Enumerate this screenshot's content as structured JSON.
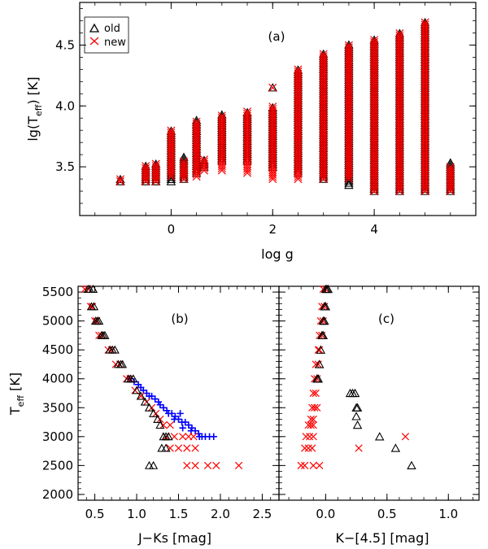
{
  "chart_data": [
    {
      "id": "a",
      "type": "scatter",
      "panel_label": "(a)",
      "xlabel": "log g",
      "ylabel_main": "lg(T",
      "ylabel_sub": "eff",
      "ylabel_tail": ") [K]",
      "xlim": [
        -1.8,
        6.0
      ],
      "ylim": [
        3.1,
        4.85
      ],
      "xticks": [
        0,
        2,
        4
      ],
      "xtick_labels": [
        "0",
        "2",
        "4"
      ],
      "yticks": [
        3.5,
        4.0,
        4.5
      ],
      "ytick_labels": [
        "3.5",
        "4.0",
        "4.5"
      ],
      "legend": {
        "position": "top-left",
        "entries": [
          {
            "marker": "triangle",
            "label": "old",
            "color": "#000000"
          },
          {
            "marker": "x",
            "label": "new",
            "color": "#ff0000"
          }
        ]
      },
      "columns": [
        {
          "logg": -1.0,
          "old": [
            3.38,
            3.4
          ],
          "new": [
            3.38,
            3.4
          ]
        },
        {
          "logg": -0.5,
          "old": [
            3.38,
            3.52
          ],
          "new": [
            3.38,
            3.52
          ]
        },
        {
          "logg": -0.3,
          "old": [
            3.38,
            3.54
          ],
          "new": [
            3.38,
            3.54
          ]
        },
        {
          "logg": 0.0,
          "old": [
            3.38,
            3.8
          ],
          "new": [
            3.42,
            3.8
          ]
        },
        {
          "logg": 0.25,
          "old": [
            3.4,
            3.58
          ],
          "new": [
            3.4,
            3.56
          ]
        },
        {
          "logg": 0.5,
          "old": [
            3.45,
            3.89
          ],
          "new": [
            3.42,
            3.87
          ]
        },
        {
          "logg": 0.65,
          "old": [
            3.5,
            3.57
          ],
          "new": [
            3.47,
            3.57
          ]
        },
        {
          "logg": 1.0,
          "old": [
            3.55,
            3.93
          ],
          "new": [
            3.47,
            3.93
          ]
        },
        {
          "logg": 1.5,
          "old": [
            3.55,
            3.96
          ],
          "new": [
            3.45,
            3.96
          ]
        },
        {
          "logg": 2.0,
          "old": [
            3.5,
            4.0
          ],
          "new": [
            3.4,
            4.0
          ]
        },
        {
          "logg": 2.5,
          "old": [
            3.45,
            4.3
          ],
          "new": [
            3.4,
            4.3
          ]
        },
        {
          "logg": 3.0,
          "old": [
            3.4,
            4.43
          ],
          "new": [
            3.4,
            4.43
          ]
        },
        {
          "logg": 3.5,
          "old": [
            3.35,
            4.51
          ],
          "new": [
            3.4,
            4.51
          ]
        },
        {
          "logg": 4.0,
          "old": [
            3.3,
            4.55
          ],
          "new": [
            3.3,
            4.55
          ]
        },
        {
          "logg": 4.5,
          "old": [
            3.3,
            4.61
          ],
          "new": [
            3.3,
            4.61
          ]
        },
        {
          "logg": 5.0,
          "old": [
            3.3,
            4.7
          ],
          "new": [
            3.3,
            4.7
          ]
        },
        {
          "logg": 5.5,
          "old": [
            3.3,
            3.54
          ],
          "new": [
            3.3,
            3.5
          ]
        }
      ],
      "extra_old": [
        [
          2.0,
          4.15
        ]
      ],
      "extra_new": [
        [
          2.0,
          4.15
        ]
      ]
    },
    {
      "id": "b",
      "type": "scatter",
      "panel_label": "(b)",
      "xlabel": "J−Ks [mag]",
      "ylabel_main": "T",
      "ylabel_sub": "eff",
      "ylabel_tail": " [K]",
      "xlim": [
        0.3,
        2.7
      ],
      "ylim": [
        1900,
        5600
      ],
      "xticks": [
        0.5,
        1.0,
        1.5,
        2.0,
        2.5
      ],
      "xtick_labels": [
        "0.5",
        "1.0",
        "1.5",
        "2.0",
        "2.5"
      ],
      "yticks": [
        2000,
        2500,
        3000,
        3500,
        4000,
        4500,
        5000,
        5500
      ],
      "ytick_labels": [
        "2000",
        "2500",
        "3000",
        "3500",
        "4000",
        "4500",
        "5000",
        "5500"
      ],
      "old_points": [
        [
          0.44,
          5550
        ],
        [
          0.48,
          5550
        ],
        [
          0.42,
          5550
        ],
        [
          0.46,
          5250
        ],
        [
          0.49,
          5250
        ],
        [
          0.51,
          5000
        ],
        [
          0.53,
          5000
        ],
        [
          0.55,
          5000
        ],
        [
          0.58,
          4750
        ],
        [
          0.6,
          4750
        ],
        [
          0.62,
          4750
        ],
        [
          0.68,
          4500
        ],
        [
          0.71,
          4500
        ],
        [
          0.74,
          4500
        ],
        [
          0.78,
          4250
        ],
        [
          0.81,
          4250
        ],
        [
          0.83,
          4250
        ],
        [
          0.9,
          4000
        ],
        [
          0.93,
          4000
        ],
        [
          0.96,
          4000
        ],
        [
          1.0,
          3800
        ],
        [
          1.05,
          3700
        ],
        [
          1.1,
          3600
        ],
        [
          1.15,
          3500
        ],
        [
          1.2,
          3400
        ],
        [
          1.25,
          3300
        ],
        [
          1.28,
          3200
        ],
        [
          1.32,
          3000
        ],
        [
          1.35,
          3000
        ],
        [
          1.38,
          3000
        ],
        [
          1.3,
          2800
        ],
        [
          1.35,
          2800
        ],
        [
          1.15,
          2500
        ],
        [
          1.2,
          2500
        ]
      ],
      "new_points": [
        [
          0.38,
          5550
        ],
        [
          0.42,
          5550
        ],
        [
          0.45,
          5250
        ],
        [
          0.47,
          5250
        ],
        [
          0.5,
          5000
        ],
        [
          0.52,
          5000
        ],
        [
          0.55,
          4750
        ],
        [
          0.58,
          4750
        ],
        [
          0.66,
          4500
        ],
        [
          0.7,
          4500
        ],
        [
          0.75,
          4250
        ],
        [
          0.8,
          4250
        ],
        [
          0.88,
          4000
        ],
        [
          0.92,
          4000
        ],
        [
          0.98,
          3800
        ],
        [
          1.05,
          3700
        ],
        [
          1.12,
          3600
        ],
        [
          1.18,
          3500
        ],
        [
          1.23,
          3400
        ],
        [
          1.28,
          3300
        ],
        [
          1.32,
          3200
        ],
        [
          1.4,
          3200
        ],
        [
          1.35,
          3000
        ],
        [
          1.45,
          3000
        ],
        [
          1.55,
          3000
        ],
        [
          1.62,
          3000
        ],
        [
          1.68,
          3000
        ],
        [
          1.4,
          2800
        ],
        [
          1.5,
          2800
        ],
        [
          1.6,
          2800
        ],
        [
          1.7,
          2800
        ],
        [
          1.6,
          2500
        ],
        [
          1.7,
          2500
        ],
        [
          1.85,
          2500
        ],
        [
          1.95,
          2500
        ],
        [
          2.22,
          2500
        ]
      ],
      "plus_points": [
        [
          0.92,
          4000
        ],
        [
          0.97,
          3950
        ],
        [
          1.02,
          3900
        ],
        [
          1.05,
          3850
        ],
        [
          1.08,
          3800
        ],
        [
          1.12,
          3750
        ],
        [
          1.15,
          3700
        ],
        [
          1.18,
          3700
        ],
        [
          1.22,
          3650
        ],
        [
          1.26,
          3600
        ],
        [
          1.28,
          3550
        ],
        [
          1.32,
          3500
        ],
        [
          1.36,
          3450
        ],
        [
          1.38,
          3400
        ],
        [
          1.42,
          3400
        ],
        [
          1.46,
          3350
        ],
        [
          1.5,
          3300
        ],
        [
          1.54,
          3250
        ],
        [
          1.58,
          3250
        ],
        [
          1.62,
          3200
        ],
        [
          1.66,
          3150
        ],
        [
          1.7,
          3100
        ],
        [
          1.74,
          3050
        ],
        [
          1.78,
          3000
        ],
        [
          1.82,
          3000
        ],
        [
          1.87,
          3000
        ],
        [
          1.92,
          3000
        ],
        [
          1.45,
          3300
        ],
        [
          1.55,
          3150
        ],
        [
          1.65,
          3100
        ],
        [
          1.75,
          3000
        ],
        [
          1.52,
          3400
        ]
      ]
    },
    {
      "id": "c",
      "type": "scatter",
      "panel_label": "(c)",
      "xlabel": "K−[4.5] [mag]",
      "xlim": [
        -0.38,
        1.25
      ],
      "ylim": [
        1900,
        5600
      ],
      "xticks": [
        0.0,
        0.5,
        1.0
      ],
      "xtick_labels": [
        "0.0",
        "0.5",
        "1.0"
      ],
      "old_points": [
        [
          0.0,
          5550
        ],
        [
          0.01,
          5550
        ],
        [
          0.02,
          5550
        ],
        [
          -0.01,
          5250
        ],
        [
          0.0,
          5250
        ],
        [
          -0.02,
          5000
        ],
        [
          -0.01,
          5000
        ],
        [
          -0.03,
          4750
        ],
        [
          -0.02,
          4750
        ],
        [
          -0.04,
          4500
        ],
        [
          -0.05,
          4250
        ],
        [
          -0.07,
          4000
        ],
        [
          -0.06,
          4000
        ],
        [
          0.2,
          3750
        ],
        [
          0.22,
          3750
        ],
        [
          0.24,
          3750
        ],
        [
          0.25,
          3500
        ],
        [
          0.26,
          3500
        ],
        [
          0.25,
          3350
        ],
        [
          0.26,
          3200
        ],
        [
          0.44,
          3000
        ],
        [
          0.57,
          2800
        ],
        [
          0.7,
          2500
        ]
      ],
      "new_points": [
        [
          -0.02,
          5550
        ],
        [
          0.0,
          5550
        ],
        [
          -0.03,
          5250
        ],
        [
          -0.01,
          5250
        ],
        [
          -0.04,
          5000
        ],
        [
          -0.02,
          5000
        ],
        [
          -0.05,
          4750
        ],
        [
          -0.03,
          4750
        ],
        [
          -0.06,
          4500
        ],
        [
          -0.05,
          4500
        ],
        [
          -0.08,
          4250
        ],
        [
          -0.06,
          4250
        ],
        [
          -0.09,
          4000
        ],
        [
          -0.07,
          4000
        ],
        [
          -0.1,
          3750
        ],
        [
          -0.08,
          3750
        ],
        [
          -0.11,
          3500
        ],
        [
          -0.09,
          3500
        ],
        [
          -0.07,
          3500
        ],
        [
          -0.12,
          3300
        ],
        [
          -0.1,
          3300
        ],
        [
          -0.14,
          3200
        ],
        [
          -0.12,
          3200
        ],
        [
          -0.1,
          3200
        ],
        [
          -0.16,
          3000
        ],
        [
          -0.13,
          3000
        ],
        [
          -0.1,
          3000
        ],
        [
          -0.17,
          2800
        ],
        [
          -0.14,
          2800
        ],
        [
          -0.11,
          2800
        ],
        [
          -0.2,
          2500
        ],
        [
          -0.17,
          2500
        ],
        [
          -0.1,
          2500
        ],
        [
          -0.05,
          2500
        ],
        [
          0.27,
          2800
        ],
        [
          0.65,
          3000
        ]
      ]
    }
  ]
}
